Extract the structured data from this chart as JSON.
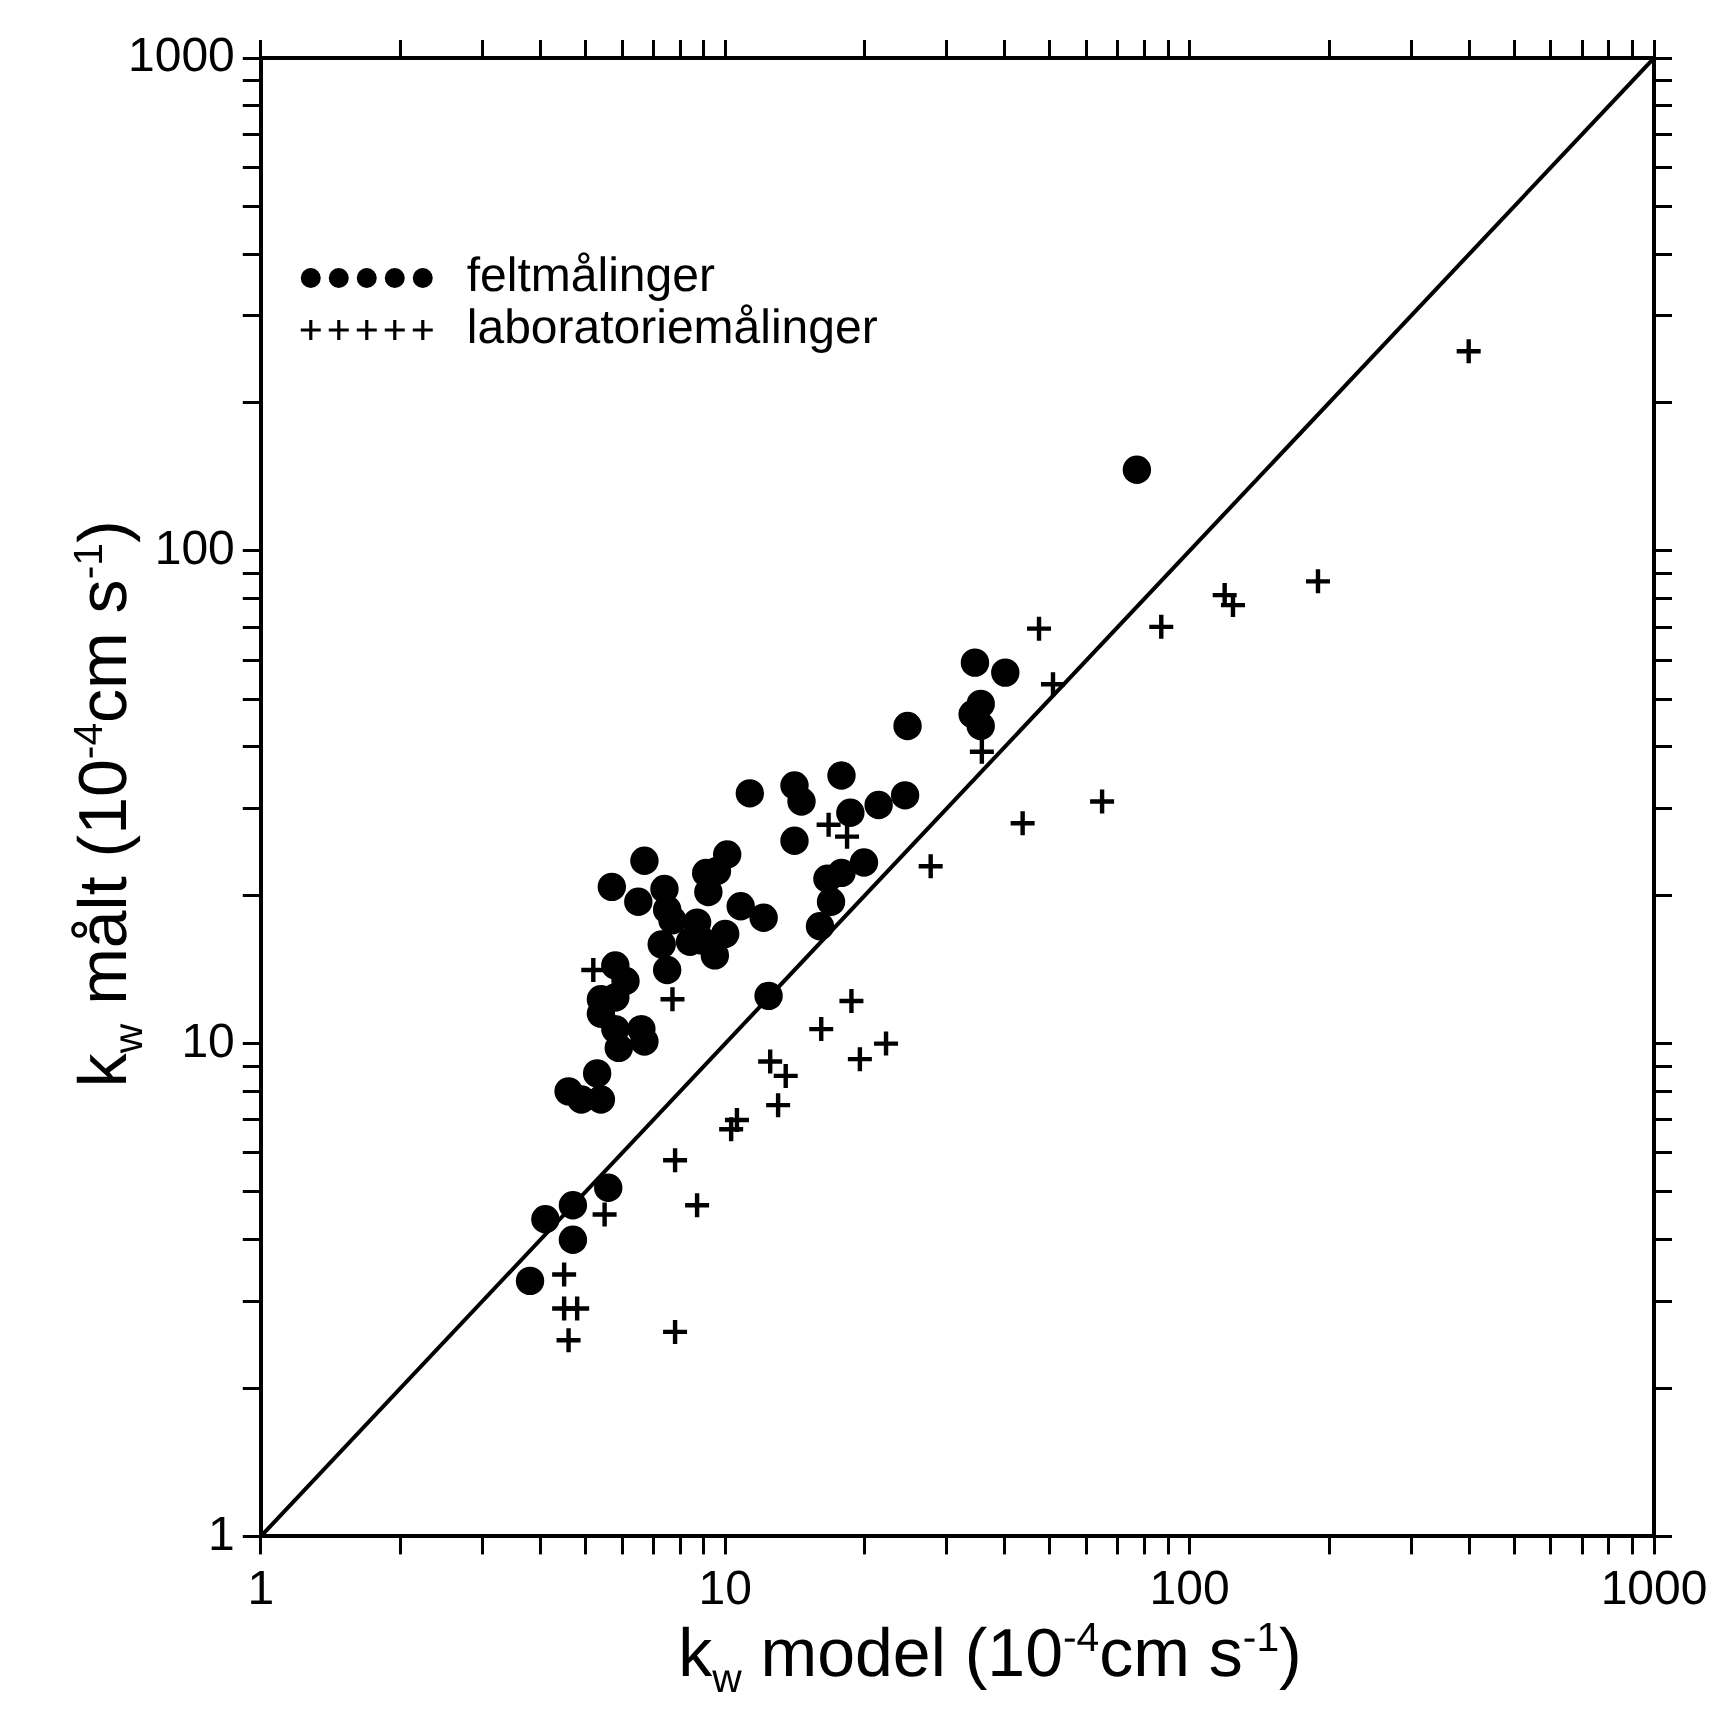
{
  "chart_data": {
    "type": "scatter",
    "xlabel": "k$_{w}$  model  (10$^{-4}$cm  s$^{-1}$)",
    "ylabel": "k$_{w}$  målt  (10$^{-4}$cm  s$^{-1}$)",
    "log": "xy",
    "grid": false,
    "legend": "top left",
    "xlim": [
      1,
      1000
    ],
    "ylim": [
      1,
      1000
    ],
    "xticks": [
      1,
      {
        "value": 2,
        "label": null
      },
      {
        "value": 3,
        "label": null
      },
      {
        "value": 4,
        "label": null
      },
      {
        "value": 5,
        "label": null
      },
      {
        "value": 6,
        "label": null
      },
      {
        "value": 7,
        "label": null
      },
      {
        "value": 8,
        "label": null
      },
      {
        "value": 9,
        "label": null
      },
      10,
      {
        "value": 20,
        "label": null
      },
      {
        "value": 30,
        "label": null
      },
      {
        "value": 40,
        "label": null
      },
      {
        "value": 50,
        "label": null
      },
      {
        "value": 60,
        "label": null
      },
      {
        "value": 70,
        "label": null
      },
      {
        "value": 80,
        "label": null
      },
      {
        "value": 90,
        "label": null
      },
      100,
      {
        "value": 200,
        "label": null
      },
      {
        "value": 300,
        "label": null
      },
      {
        "value": 400,
        "label": null
      },
      {
        "value": 500,
        "label": null
      },
      {
        "value": 600,
        "label": null
      },
      {
        "value": 700,
        "label": null
      },
      {
        "value": 800,
        "label": null
      },
      {
        "value": 900,
        "label": null
      },
      1000
    ],
    "yticks": [
      1,
      {
        "value": 2,
        "label": null
      },
      {
        "value": 3,
        "label": null
      },
      {
        "value": 4,
        "label": null
      },
      {
        "value": 5,
        "label": null
      },
      {
        "value": 6,
        "label": null
      },
      {
        "value": 7,
        "label": null
      },
      {
        "value": 8,
        "label": null
      },
      {
        "value": 9,
        "label": null
      },
      10,
      {
        "value": 20,
        "label": null
      },
      {
        "value": 30,
        "label": null
      },
      {
        "value": 40,
        "label": null
      },
      {
        "value": 50,
        "label": null
      },
      {
        "value": 60,
        "label": null
      },
      {
        "value": 70,
        "label": null
      },
      {
        "value": 80,
        "label": null
      },
      {
        "value": 90,
        "label": null
      },
      100,
      {
        "value": 200,
        "label": null
      },
      {
        "value": 300,
        "label": null
      },
      {
        "value": 400,
        "label": null
      },
      {
        "value": 500,
        "label": null
      },
      {
        "value": 600,
        "label": null
      },
      {
        "value": 700,
        "label": null
      },
      {
        "value": 800,
        "label": null
      },
      {
        "value": 900,
        "label": null
      },
      1000
    ],
    "series": [
      {
        "name": "feltmålinger",
        "color": "#000000",
        "marker": "circle",
        "x": [
          34.5,
          40.1,
          35.5,
          34.1,
          35.5,
          24.7,
          17.8,
          14.1,
          14.6,
          11.3,
          18.6,
          21.4,
          24.4,
          14.1,
          16.6,
          17.8,
          19.9,
          16.9,
          16.0,
          12.4,
          10.1,
          9.1,
          9.6,
          9.2,
          6.7,
          7.4,
          5.7,
          6.5,
          7.5,
          7.7,
          10.8,
          12.1,
          8.7,
          8.4,
          8.9,
          10.0,
          9.5,
          7.3,
          7.5,
          5.8,
          6.1,
          5.4,
          5.8,
          5.4,
          5.8,
          6.6,
          6.7,
          5.9,
          5.3,
          4.6,
          4.9,
          5.4,
          5.6,
          4.7,
          4.1,
          4.7,
          3.8,
          77
        ],
        "values": [
          59.3,
          56.6,
          48.9,
          46.6,
          44.1,
          44.1,
          35.0,
          33.4,
          31.0,
          32.2,
          29.4,
          30.5,
          31.9,
          25.8,
          21.6,
          22.2,
          23.3,
          19.4,
          17.3,
          12.5,
          24.2,
          22.2,
          22.4,
          20.3,
          23.5,
          20.6,
          20.8,
          19.4,
          18.7,
          17.8,
          19.0,
          18.0,
          17.6,
          16.1,
          16.2,
          16.7,
          15.1,
          15.9,
          14.1,
          14.4,
          13.4,
          12.3,
          12.4,
          11.5,
          10.7,
          10.7,
          10.1,
          9.8,
          8.7,
          8.0,
          7.7,
          7.7,
          5.1,
          4.7,
          4.4,
          4.0,
          3.3,
          146
        ]
      },
      {
        "name": "laboratoriemålinger",
        "color": "#000000",
        "marker": "cross",
        "x": [
          5.2,
          7.7,
          16.7,
          18.3,
          27.7,
          35.7,
          43.7,
          18.7,
          16.1,
          12.5,
          13.5,
          19.5,
          22.2,
          13.0,
          10.6,
          10.3,
          7.8,
          8.7,
          5.5,
          4.5,
          4.5,
          4.8,
          4.6,
          7.8,
          399,
          47.4,
          50.8,
          86.9,
          119,
          124,
          189,
          64.8
        ],
        "values": [
          14.1,
          12.3,
          27.8,
          26.3,
          22.9,
          39.1,
          28.0,
          12.2,
          10.7,
          9.2,
          8.6,
          9.3,
          10.0,
          7.5,
          7.0,
          6.7,
          5.8,
          4.7,
          4.5,
          3.4,
          2.9,
          2.9,
          2.5,
          2.6,
          254,
          69.5,
          53.6,
          70.1,
          81.3,
          77.6,
          86.7,
          31.0
        ]
      },
      {
        "type": "line",
        "color": "#000000",
        "marker": "none",
        "x": [
          1,
          1000
        ],
        "values": [
          1,
          1000
        ]
      }
    ]
  }
}
